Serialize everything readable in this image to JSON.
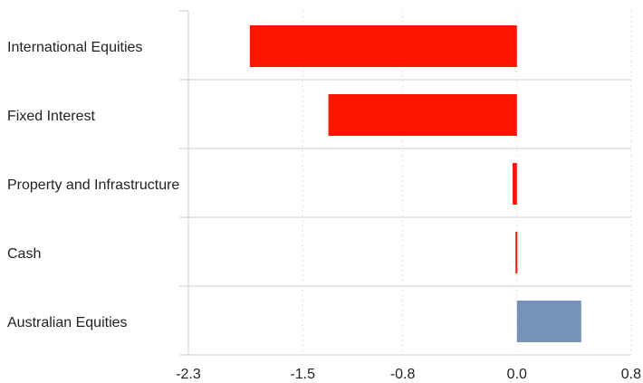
{
  "chart_data": {
    "type": "bar",
    "orientation": "horizontal",
    "title": "",
    "xlabel": "",
    "ylabel": "",
    "categories": [
      "International Equities",
      "Fixed Interest",
      "Property and Infrastructure",
      "Cash",
      "Australian Equities"
    ],
    "values": [
      -1.87,
      -1.32,
      -0.03,
      -0.01,
      0.45
    ],
    "xlim": [
      -2.3,
      0.8
    ],
    "ticks": [
      -2.3,
      -1.5,
      -0.8,
      0.0,
      0.8
    ],
    "tick_labels": [
      "-2.3",
      "-1.5",
      "-0.8",
      "0.0",
      "0.8"
    ],
    "grid": true,
    "legend": false,
    "colors": {
      "negative": "#ff1400",
      "positive": "#7593b9",
      "grid": "#dddddd",
      "axis": "#cccccc"
    }
  }
}
